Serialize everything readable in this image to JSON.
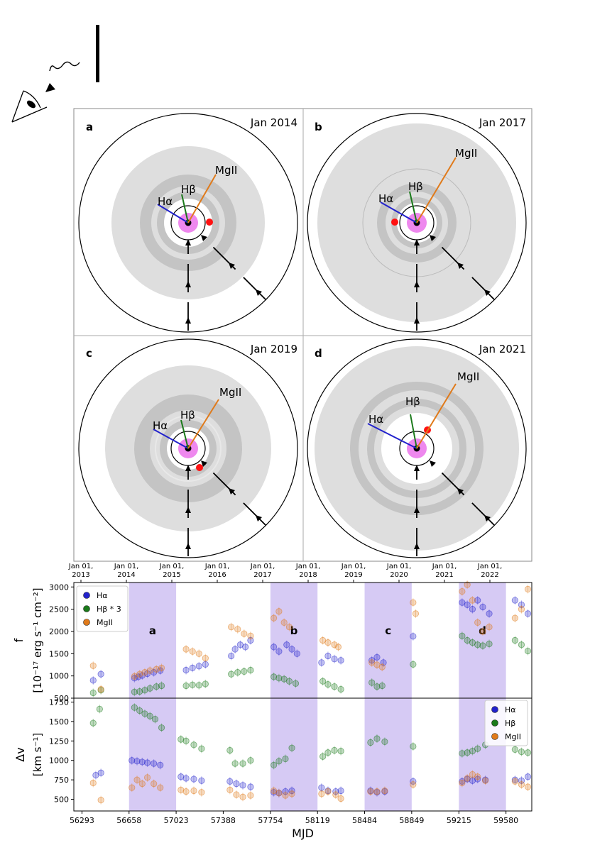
{
  "panels": [
    {
      "letter": "a",
      "date": "Jan 2014"
    },
    {
      "letter": "b",
      "date": "Jan 2017"
    },
    {
      "letter": "c",
      "date": "Jan 2019"
    },
    {
      "letter": "d",
      "date": "Jan 2021"
    }
  ],
  "line_labels": {
    "halpha": "Hα",
    "hbeta": "Hβ",
    "mgii": "MgII"
  },
  "colors": {
    "halpha": "#2222cc",
    "hbeta": "#1a7a1a",
    "mgii": "#e07a1a",
    "cloud": "#ff1111",
    "core": "#ee88ee",
    "band": "#c8b8f0"
  },
  "top_axis": {
    "ticks": [
      {
        "line1": "Jan 01,",
        "line2": "2013"
      },
      {
        "line1": "Jan 01,",
        "line2": "2014"
      },
      {
        "line1": "Jan 01,",
        "line2": "2015"
      },
      {
        "line1": "Jan 01,",
        "line2": "2016"
      },
      {
        "line1": "Jan 01,",
        "line2": "2017"
      },
      {
        "line1": "Jan 01,",
        "line2": "2018"
      },
      {
        "line1": "Jan 01,",
        "line2": "2019"
      },
      {
        "line1": "Jan 01,",
        "line2": "2020"
      },
      {
        "line1": "Jan 01,",
        "line2": "2021"
      },
      {
        "line1": "Jan 01,",
        "line2": "2022"
      }
    ]
  },
  "chart_data": [
    {
      "type": "scatter",
      "title": "",
      "ylabel_line1": "f",
      "ylabel_line2": "[10⁻¹⁷ erg s⁻¹ cm⁻²]",
      "ylim": [
        500,
        3100
      ],
      "yticks": [
        "500",
        "1000",
        "1500",
        "2000",
        "2500",
        "3000"
      ],
      "ytick_values": [
        500,
        1000,
        1500,
        2000,
        2500,
        3000
      ],
      "legend": [
        "Hα",
        "Hβ * 3",
        "MgII"
      ],
      "band_labels": [
        "a",
        "b",
        "c",
        "d"
      ],
      "band_ranges": [
        [
          56658,
          57023
        ],
        [
          57754,
          58119
        ],
        [
          58484,
          58849
        ],
        [
          59215,
          59580
        ]
      ],
      "series": [
        {
          "name": "Hα",
          "points": [
            [
              56380,
              900
            ],
            [
              56440,
              1040
            ],
            [
              56700,
              950
            ],
            [
              56730,
              980
            ],
            [
              56760,
              1010
            ],
            [
              56800,
              1050
            ],
            [
              56850,
              1080
            ],
            [
              56900,
              1120
            ],
            [
              57100,
              1130
            ],
            [
              57150,
              1180
            ],
            [
              57200,
              1220
            ],
            [
              57250,
              1260
            ],
            [
              57450,
              1450
            ],
            [
              57480,
              1600
            ],
            [
              57520,
              1700
            ],
            [
              57560,
              1650
            ],
            [
              57600,
              1800
            ],
            [
              57780,
              1650
            ],
            [
              57820,
              1550
            ],
            [
              57880,
              1700
            ],
            [
              57920,
              1600
            ],
            [
              57960,
              1500
            ],
            [
              58150,
              1300
            ],
            [
              58200,
              1450
            ],
            [
              58250,
              1380
            ],
            [
              58300,
              1350
            ],
            [
              58540,
              1350
            ],
            [
              58580,
              1420
            ],
            [
              58630,
              1300
            ],
            [
              58860,
              1890
            ],
            [
              59240,
              2650
            ],
            [
              59280,
              2600
            ],
            [
              59320,
              2500
            ],
            [
              59360,
              2700
            ],
            [
              59400,
              2550
            ],
            [
              59450,
              2400
            ],
            [
              59650,
              2700
            ],
            [
              59700,
              2600
            ],
            [
              59750,
              2400
            ]
          ]
        },
        {
          "name": "Hβ * 3",
          "points": [
            [
              56380,
              620
            ],
            [
              56440,
              680
            ],
            [
              56700,
              640
            ],
            [
              56740,
              650
            ],
            [
              56780,
              680
            ],
            [
              56820,
              720
            ],
            [
              56870,
              760
            ],
            [
              56910,
              780
            ],
            [
              57100,
              780
            ],
            [
              57150,
              800
            ],
            [
              57200,
              790
            ],
            [
              57250,
              820
            ],
            [
              57450,
              1040
            ],
            [
              57500,
              1080
            ],
            [
              57550,
              1100
            ],
            [
              57600,
              1130
            ],
            [
              57780,
              980
            ],
            [
              57820,
              950
            ],
            [
              57860,
              930
            ],
            [
              57900,
              880
            ],
            [
              57950,
              830
            ],
            [
              58160,
              880
            ],
            [
              58200,
              810
            ],
            [
              58250,
              760
            ],
            [
              58300,
              700
            ],
            [
              58540,
              850
            ],
            [
              58580,
              760
            ],
            [
              58620,
              780
            ],
            [
              58860,
              1260
            ],
            [
              59240,
              1900
            ],
            [
              59280,
              1800
            ],
            [
              59320,
              1750
            ],
            [
              59360,
              1700
            ],
            [
              59400,
              1680
            ],
            [
              59450,
              1720
            ],
            [
              59650,
              1800
            ],
            [
              59700,
              1700
            ],
            [
              59750,
              1560
            ]
          ]
        },
        {
          "name": "MgII",
          "points": [
            [
              56380,
              1230
            ],
            [
              56440,
              700
            ],
            [
              56700,
              990
            ],
            [
              56740,
              1040
            ],
            [
              56780,
              1080
            ],
            [
              56820,
              1120
            ],
            [
              56870,
              1150
            ],
            [
              56910,
              1180
            ],
            [
              57100,
              1600
            ],
            [
              57150,
              1550
            ],
            [
              57200,
              1500
            ],
            [
              57250,
              1400
            ],
            [
              57450,
              2100
            ],
            [
              57500,
              2050
            ],
            [
              57550,
              1950
            ],
            [
              57600,
              1900
            ],
            [
              57780,
              2300
            ],
            [
              57820,
              2450
            ],
            [
              57860,
              2200
            ],
            [
              57900,
              2100
            ],
            [
              58160,
              1800
            ],
            [
              58200,
              1750
            ],
            [
              58250,
              1700
            ],
            [
              58280,
              1650
            ],
            [
              58540,
              1300
            ],
            [
              58580,
              1250
            ],
            [
              58620,
              1200
            ],
            [
              58860,
              2650
            ],
            [
              58880,
              2400
            ],
            [
              59240,
              2900
            ],
            [
              59280,
              3050
            ],
            [
              59320,
              2700
            ],
            [
              59360,
              2200
            ],
            [
              59400,
              2000
            ],
            [
              59450,
              2100
            ],
            [
              59650,
              2300
            ],
            [
              59700,
              2500
            ],
            [
              59750,
              2950
            ]
          ]
        }
      ]
    },
    {
      "type": "scatter",
      "title": "",
      "ylabel_line1": "Δv",
      "ylabel_line2": "[km s⁻¹]",
      "ylim": [
        350,
        1800
      ],
      "yticks": [
        "500",
        "750",
        "1000",
        "1250",
        "1500",
        "1750"
      ],
      "ytick_values": [
        500,
        750,
        1000,
        1250,
        1500,
        1750
      ],
      "xlabel": "MJD",
      "xlim": [
        56230,
        59780
      ],
      "xticks": [
        "56293",
        "56658",
        "57023",
        "57388",
        "57754",
        "58119",
        "58484",
        "58849",
        "59215",
        "59580"
      ],
      "xtick_values": [
        56293,
        56658,
        57023,
        57388,
        57754,
        58119,
        58484,
        58849,
        59215,
        59580
      ],
      "legend": [
        "Hα",
        "Hβ",
        "MgII"
      ],
      "series": [
        {
          "name": "Hα",
          "points": [
            [
              56400,
              810
            ],
            [
              56440,
              840
            ],
            [
              56680,
              1000
            ],
            [
              56720,
              990
            ],
            [
              56760,
              980
            ],
            [
              56800,
              970
            ],
            [
              56850,
              960
            ],
            [
              56900,
              940
            ],
            [
              57060,
              790
            ],
            [
              57100,
              770
            ],
            [
              57160,
              760
            ],
            [
              57220,
              740
            ],
            [
              57440,
              730
            ],
            [
              57490,
              700
            ],
            [
              57540,
              680
            ],
            [
              57600,
              660
            ],
            [
              57780,
              590
            ],
            [
              57820,
              580
            ],
            [
              57870,
              600
            ],
            [
              57920,
              610
            ],
            [
              58150,
              650
            ],
            [
              58200,
              610
            ],
            [
              58260,
              600
            ],
            [
              58300,
              610
            ],
            [
              58530,
              610
            ],
            [
              58580,
              590
            ],
            [
              58640,
              600
            ],
            [
              58860,
              730
            ],
            [
              59240,
              730
            ],
            [
              59280,
              760
            ],
            [
              59320,
              740
            ],
            [
              59360,
              760
            ],
            [
              59420,
              750
            ],
            [
              59650,
              750
            ],
            [
              59700,
              740
            ],
            [
              59750,
              790
            ]
          ]
        },
        {
          "name": "Hβ",
          "points": [
            [
              56380,
              1480
            ],
            [
              56430,
              1660
            ],
            [
              56700,
              1680
            ],
            [
              56740,
              1640
            ],
            [
              56780,
              1600
            ],
            [
              56820,
              1570
            ],
            [
              56860,
              1530
            ],
            [
              56910,
              1420
            ],
            [
              57060,
              1270
            ],
            [
              57100,
              1250
            ],
            [
              57160,
              1200
            ],
            [
              57220,
              1150
            ],
            [
              57440,
              1130
            ],
            [
              57480,
              960
            ],
            [
              57540,
              960
            ],
            [
              57600,
              1000
            ],
            [
              57780,
              940
            ],
            [
              57820,
              990
            ],
            [
              57870,
              1020
            ],
            [
              57920,
              1160
            ],
            [
              58160,
              1050
            ],
            [
              58200,
              1100
            ],
            [
              58250,
              1130
            ],
            [
              58300,
              1120
            ],
            [
              58530,
              1230
            ],
            [
              58580,
              1280
            ],
            [
              58640,
              1240
            ],
            [
              58860,
              1180
            ],
            [
              59240,
              1090
            ],
            [
              59280,
              1100
            ],
            [
              59320,
              1120
            ],
            [
              59360,
              1150
            ],
            [
              59420,
              1200
            ],
            [
              59650,
              1140
            ],
            [
              59700,
              1110
            ],
            [
              59750,
              1100
            ]
          ]
        },
        {
          "name": "MgII",
          "points": [
            [
              56380,
              710
            ],
            [
              56440,
              490
            ],
            [
              56680,
              650
            ],
            [
              56720,
              750
            ],
            [
              56760,
              700
            ],
            [
              56800,
              780
            ],
            [
              56850,
              700
            ],
            [
              56900,
              650
            ],
            [
              57060,
              620
            ],
            [
              57100,
              600
            ],
            [
              57160,
              610
            ],
            [
              57220,
              590
            ],
            [
              57440,
              620
            ],
            [
              57490,
              560
            ],
            [
              57540,
              530
            ],
            [
              57600,
              550
            ],
            [
              57780,
              610
            ],
            [
              57820,
              580
            ],
            [
              57870,
              550
            ],
            [
              57920,
              570
            ],
            [
              58150,
              570
            ],
            [
              58200,
              600
            ],
            [
              58260,
              560
            ],
            [
              58300,
              510
            ],
            [
              58530,
              600
            ],
            [
              58580,
              600
            ],
            [
              58640,
              610
            ],
            [
              58860,
              690
            ],
            [
              59240,
              710
            ],
            [
              59280,
              770
            ],
            [
              59320,
              820
            ],
            [
              59360,
              790
            ],
            [
              59420,
              740
            ],
            [
              59650,
              730
            ],
            [
              59700,
              690
            ],
            [
              59750,
              660
            ]
          ]
        }
      ]
    }
  ]
}
